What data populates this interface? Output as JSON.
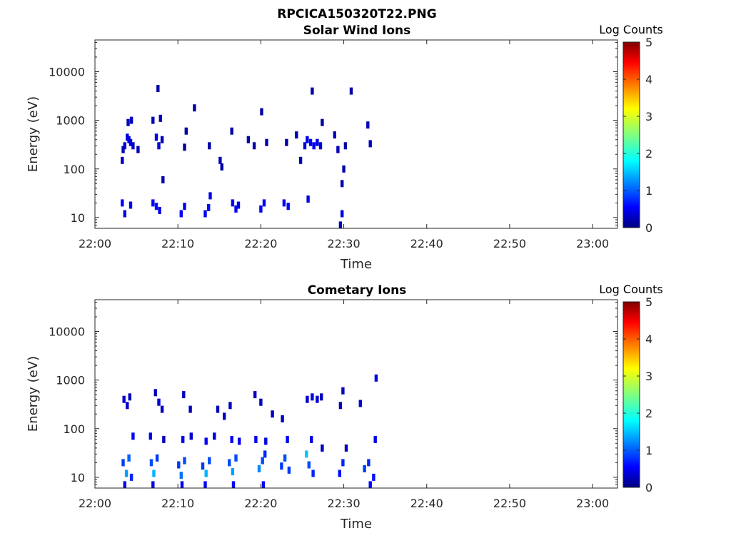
{
  "figure_title": "RPCICA150320T22.PNG",
  "colors": {
    "axis": "#262626",
    "background": "#ffffff",
    "colormap": [
      "#00007f",
      "#0000ff",
      "#007fff",
      "#00ffff",
      "#7fff7f",
      "#ffff00",
      "#ff7f00",
      "#ff0000",
      "#7f0000"
    ]
  },
  "chart_data": [
    {
      "type": "heatmap",
      "title": "Solar Wind Ions",
      "xlabel": "Time",
      "ylabel": "Energy (eV)",
      "yscale": "log",
      "x_range_minutes": [
        0,
        63
      ],
      "ylim": [
        6,
        45000
      ],
      "x_ticks": [
        "22:00",
        "22:10",
        "22:20",
        "22:30",
        "22:40",
        "22:50",
        "23:00"
      ],
      "y_ticks": [
        "10",
        "100",
        "1000",
        "10000"
      ],
      "y_tick_values": [
        10,
        100,
        1000,
        10000
      ],
      "colorbar": {
        "label": "Log Counts",
        "range": [
          0,
          5
        ],
        "ticks": [
          "0",
          "1",
          "2",
          "3",
          "4",
          "5"
        ]
      },
      "grid": false,
      "cells": [
        [
          3.4,
          250,
          0.3
        ],
        [
          3.6,
          300,
          0.4
        ],
        [
          3.3,
          150,
          0.3
        ],
        [
          3.9,
          450,
          0.5
        ],
        [
          4.1,
          400,
          0.5
        ],
        [
          4.3,
          350,
          0.4
        ],
        [
          4.0,
          900,
          0.3
        ],
        [
          4.4,
          1000,
          0.3
        ],
        [
          4.6,
          300,
          0.4
        ],
        [
          5.2,
          250,
          0.3
        ],
        [
          7.0,
          1000,
          0.3
        ],
        [
          7.4,
          450,
          0.5
        ],
        [
          7.7,
          300,
          0.4
        ],
        [
          7.9,
          1100,
          0.3
        ],
        [
          8.1,
          400,
          0.3
        ],
        [
          7.6,
          4500,
          0.2
        ],
        [
          8.2,
          60,
          0.2
        ],
        [
          12.0,
          1800,
          0.2
        ],
        [
          11.0,
          600,
          0.2
        ],
        [
          10.8,
          280,
          0.2
        ],
        [
          13.8,
          300,
          0.2
        ],
        [
          15.1,
          150,
          0.2
        ],
        [
          15.3,
          110,
          0.2
        ],
        [
          16.5,
          600,
          0.2
        ],
        [
          18.5,
          400,
          0.2
        ],
        [
          19.2,
          300,
          0.2
        ],
        [
          20.1,
          1500,
          0.2
        ],
        [
          20.7,
          350,
          0.2
        ],
        [
          23.1,
          350,
          0.2
        ],
        [
          24.3,
          500,
          0.2
        ],
        [
          24.8,
          150,
          0.2
        ],
        [
          25.3,
          300,
          0.4
        ],
        [
          25.6,
          400,
          0.5
        ],
        [
          26.0,
          350,
          0.5
        ],
        [
          26.4,
          300,
          0.6
        ],
        [
          26.8,
          350,
          0.5
        ],
        [
          27.2,
          300,
          0.4
        ],
        [
          26.2,
          4000,
          0.2
        ],
        [
          27.4,
          900,
          0.2
        ],
        [
          28.9,
          500,
          0.3
        ],
        [
          29.3,
          250,
          0.3
        ],
        [
          30.2,
          300,
          0.2
        ],
        [
          30.9,
          4000,
          0.2
        ],
        [
          32.9,
          800,
          0.3
        ],
        [
          33.2,
          330,
          0.3
        ],
        [
          30.0,
          100,
          0.2
        ],
        [
          29.8,
          50,
          0.2
        ],
        [
          3.3,
          20,
          0.6
        ],
        [
          3.6,
          12,
          0.5
        ],
        [
          4.3,
          18,
          0.5
        ],
        [
          7.0,
          20,
          0.6
        ],
        [
          7.4,
          17,
          0.7
        ],
        [
          7.8,
          14,
          0.5
        ],
        [
          10.4,
          12,
          0.6
        ],
        [
          10.8,
          17,
          0.6
        ],
        [
          13.3,
          12,
          0.6
        ],
        [
          13.7,
          16,
          0.7
        ],
        [
          13.9,
          28,
          0.5
        ],
        [
          16.6,
          20,
          0.6
        ],
        [
          17.0,
          15,
          0.6
        ],
        [
          17.3,
          18,
          0.5
        ],
        [
          20.0,
          15,
          0.6
        ],
        [
          20.4,
          20,
          0.6
        ],
        [
          22.8,
          20,
          0.6
        ],
        [
          23.3,
          17,
          0.6
        ],
        [
          25.7,
          24,
          0.5
        ],
        [
          29.8,
          12,
          0.5
        ],
        [
          29.6,
          7,
          0.3
        ]
      ]
    },
    {
      "type": "heatmap",
      "title": "Cometary Ions",
      "xlabel": "Time",
      "ylabel": "Energy (eV)",
      "yscale": "log",
      "x_range_minutes": [
        0,
        63
      ],
      "ylim": [
        6,
        45000
      ],
      "x_ticks": [
        "22:00",
        "22:10",
        "22:20",
        "22:30",
        "22:40",
        "22:50",
        "23:00"
      ],
      "y_ticks": [
        "10",
        "100",
        "1000",
        "10000"
      ],
      "y_tick_values": [
        10,
        100,
        1000,
        10000
      ],
      "colorbar": {
        "label": "Log Counts",
        "range": [
          0,
          5
        ],
        "ticks": [
          "0",
          "1",
          "2",
          "3",
          "4",
          "5"
        ]
      },
      "grid": false,
      "cells": [
        [
          3.5,
          400,
          0.4
        ],
        [
          3.9,
          300,
          0.4
        ],
        [
          4.2,
          450,
          0.3
        ],
        [
          7.3,
          550,
          0.3
        ],
        [
          7.7,
          350,
          0.4
        ],
        [
          8.1,
          250,
          0.3
        ],
        [
          10.7,
          500,
          0.3
        ],
        [
          11.5,
          250,
          0.3
        ],
        [
          14.8,
          250,
          0.3
        ],
        [
          15.6,
          180,
          0.3
        ],
        [
          16.3,
          300,
          0.3
        ],
        [
          19.3,
          500,
          0.3
        ],
        [
          20.0,
          350,
          0.3
        ],
        [
          21.4,
          200,
          0.3
        ],
        [
          22.6,
          160,
          0.3
        ],
        [
          25.6,
          400,
          0.4
        ],
        [
          26.2,
          450,
          0.5
        ],
        [
          26.8,
          400,
          0.4
        ],
        [
          27.3,
          450,
          0.3
        ],
        [
          29.9,
          600,
          0.3
        ],
        [
          29.6,
          300,
          0.3
        ],
        [
          32.0,
          330,
          0.4
        ],
        [
          33.9,
          1100,
          0.5
        ],
        [
          4.6,
          70,
          0.6
        ],
        [
          6.7,
          70,
          0.5
        ],
        [
          8.3,
          60,
          0.3
        ],
        [
          10.6,
          60,
          0.5
        ],
        [
          11.6,
          70,
          0.4
        ],
        [
          13.4,
          55,
          0.6
        ],
        [
          14.4,
          70,
          0.5
        ],
        [
          16.5,
          60,
          0.6
        ],
        [
          17.4,
          55,
          0.5
        ],
        [
          19.4,
          60,
          0.6
        ],
        [
          20.6,
          55,
          0.5
        ],
        [
          23.2,
          60,
          0.6
        ],
        [
          26.1,
          60,
          0.5
        ],
        [
          27.4,
          40,
          0.3
        ],
        [
          30.3,
          40,
          0.3
        ],
        [
          33.8,
          60,
          0.5
        ],
        [
          3.4,
          20,
          0.9
        ],
        [
          3.8,
          12,
          1.4
        ],
        [
          4.1,
          25,
          1.1
        ],
        [
          4.4,
          10,
          0.8
        ],
        [
          6.8,
          20,
          1.0
        ],
        [
          7.1,
          12,
          1.5
        ],
        [
          7.5,
          25,
          0.9
        ],
        [
          10.1,
          18,
          0.9
        ],
        [
          10.4,
          11,
          1.2
        ],
        [
          10.8,
          22,
          1.0
        ],
        [
          13.0,
          17,
          0.9
        ],
        [
          13.4,
          12,
          1.5
        ],
        [
          13.8,
          22,
          1.0
        ],
        [
          16.2,
          20,
          1.0
        ],
        [
          16.6,
          13,
          1.4
        ],
        [
          17.0,
          25,
          1.0
        ],
        [
          19.8,
          15,
          1.3
        ],
        [
          20.2,
          22,
          1.0
        ],
        [
          20.5,
          30,
          0.8
        ],
        [
          22.5,
          17,
          0.9
        ],
        [
          22.9,
          25,
          1.0
        ],
        [
          23.4,
          14,
          0.9
        ],
        [
          25.5,
          30,
          1.6
        ],
        [
          25.8,
          18,
          1.0
        ],
        [
          26.3,
          12,
          0.8
        ],
        [
          29.5,
          12,
          0.7
        ],
        [
          29.9,
          20,
          0.8
        ],
        [
          32.5,
          15,
          0.9
        ],
        [
          33.0,
          20,
          0.8
        ],
        [
          33.6,
          10,
          0.7
        ],
        [
          3.6,
          7,
          0.6
        ],
        [
          7.0,
          7,
          0.5
        ],
        [
          10.5,
          7,
          0.6
        ],
        [
          13.3,
          7,
          0.6
        ],
        [
          16.7,
          7,
          0.6
        ],
        [
          20.3,
          7,
          0.6
        ],
        [
          33.2,
          7,
          0.6
        ]
      ]
    }
  ]
}
